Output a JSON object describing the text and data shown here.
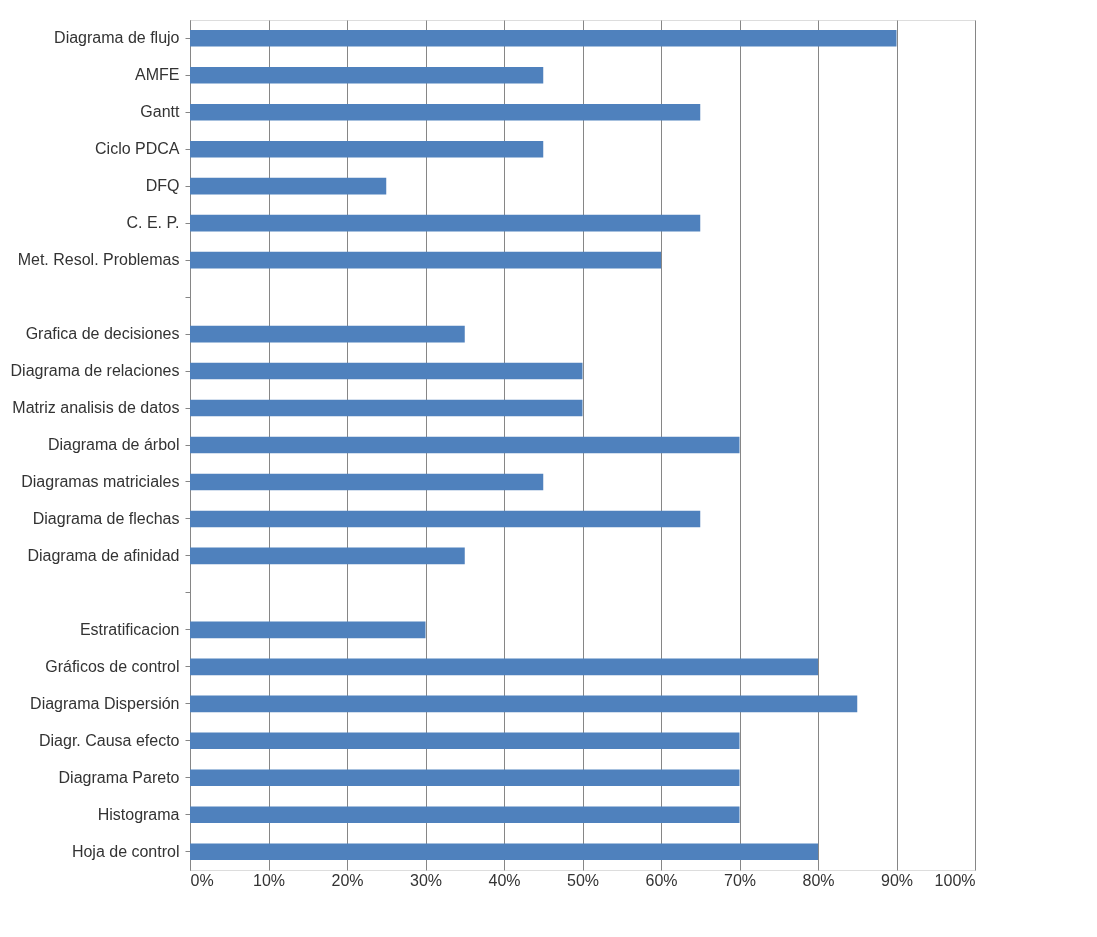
{
  "chart_data": {
    "type": "bar",
    "orientation": "horizontal",
    "categories": [
      "Diagrama de flujo",
      "AMFE",
      "Gantt",
      "Ciclo PDCA",
      "DFQ",
      "C. E. P.",
      "Met. Resol. Problemas",
      null,
      "Grafica de decisiones",
      "Diagrama de relaciones",
      "Matriz analisis de datos",
      "Diagrama de árbol",
      "Diagramas matriciales",
      "Diagrama de flechas",
      "Diagrama de afinidad",
      null,
      "Estratificacion",
      "Gráficos de control",
      "Diagrama Dispersión",
      "Diagr. Causa efecto",
      "Diagrama Pareto",
      "Histograma",
      "Hoja de control"
    ],
    "series": [
      {
        "color": "#4f81bd",
        "values": [
          90,
          45,
          65,
          45,
          25,
          65,
          60,
          null,
          35,
          50,
          50,
          70,
          45,
          65,
          35,
          null,
          30,
          80,
          85,
          70,
          70,
          70,
          80
        ]
      }
    ],
    "xlim": [
      0,
      100
    ],
    "xticks": [
      {
        "value": 0,
        "label": "0%"
      },
      {
        "value": 10,
        "label": "10%"
      },
      {
        "value": 20,
        "label": "20%"
      },
      {
        "value": 30,
        "label": "30%"
      },
      {
        "value": 40,
        "label": "40%"
      },
      {
        "value": 50,
        "label": "50%"
      },
      {
        "value": 60,
        "label": "60%"
      },
      {
        "value": 70,
        "label": "70%"
      },
      {
        "value": 80,
        "label": "80%"
      },
      {
        "value": 90,
        "label": "90%"
      },
      {
        "value": 100,
        "label": "100%"
      }
    ],
    "grid": "x",
    "legend": false
  }
}
